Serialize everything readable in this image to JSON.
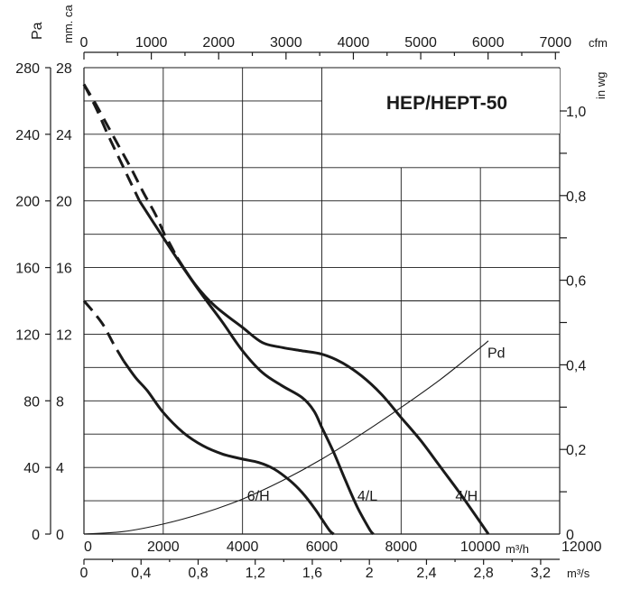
{
  "chart_data": {
    "type": "line",
    "title": "HEP/HEPT-50",
    "units": {
      "pa": "Pa",
      "mmca": "mm. ca",
      "inwg": "in wg",
      "cfm": "cfm",
      "m3h": "m³/h",
      "m3s": "m³/s"
    },
    "axes": {
      "x_m3h": {
        "min": 0,
        "max": 12000,
        "ticks": [
          "0",
          "2000",
          "4000",
          "6000",
          "8000",
          "10000",
          "12000"
        ]
      },
      "x_cfm": {
        "ticks": [
          "0",
          "1000",
          "2000",
          "3000",
          "4000",
          "5000",
          "6000",
          "7000"
        ]
      },
      "x_m3s": {
        "ticks": [
          "0",
          "0,4",
          "0,8",
          "1,2",
          "1,6",
          "2",
          "2,4",
          "2,8",
          "3,2"
        ]
      },
      "y_mmca": {
        "min": 0,
        "max": 28,
        "ticks": [
          "0",
          "4",
          "8",
          "12",
          "16",
          "20",
          "24",
          "28"
        ]
      },
      "y_pa": {
        "ticks": [
          "0",
          "40",
          "80",
          "120",
          "160",
          "200",
          "240",
          "280"
        ]
      },
      "y_inwg": {
        "ticks": [
          "0",
          "0,2",
          "0,4",
          "0,6",
          "0,8",
          "1,0"
        ]
      }
    },
    "grid": true,
    "series": [
      {
        "name": "4/H",
        "dashed_segment": [
          [
            0,
            27
          ],
          [
            100,
            26.6
          ],
          [
            300,
            25.8
          ],
          [
            600,
            24.5
          ],
          [
            900,
            23.2
          ],
          [
            1200,
            21.9
          ],
          [
            1500,
            20.5
          ],
          [
            1800,
            19.2
          ],
          [
            2050,
            17.9
          ],
          [
            2150,
            17.5
          ],
          [
            2350,
            16.6
          ]
        ],
        "solid_segment": [
          [
            2350,
            16.6
          ],
          [
            2800,
            15
          ],
          [
            3300,
            13.7
          ],
          [
            4000,
            12.4
          ],
          [
            4500,
            11.5
          ],
          [
            5000,
            11.2
          ],
          [
            5500,
            11
          ],
          [
            6000,
            10.8
          ],
          [
            6500,
            10.3
          ],
          [
            7000,
            9.5
          ],
          [
            7500,
            8.4
          ],
          [
            8000,
            7.0
          ],
          [
            8500,
            5.6
          ],
          [
            9000,
            4.0
          ],
          [
            9500,
            2.4
          ],
          [
            10000,
            0.7
          ],
          [
            10200,
            0
          ]
        ]
      },
      {
        "name": "4/L",
        "dashed_segment": [
          [
            0,
            27
          ],
          [
            300,
            25.6
          ],
          [
            600,
            24
          ],
          [
            900,
            22.5
          ],
          [
            1200,
            21
          ],
          [
            1400,
            20
          ]
        ],
        "solid_segment": [
          [
            1400,
            20
          ],
          [
            2000,
            17.8
          ],
          [
            2500,
            16
          ],
          [
            3000,
            14.3
          ],
          [
            3500,
            12.7
          ],
          [
            4000,
            11
          ],
          [
            4500,
            9.7
          ],
          [
            5000,
            8.9
          ],
          [
            5500,
            8.2
          ],
          [
            5800,
            7.4
          ],
          [
            6000,
            6.4
          ],
          [
            6300,
            4.9
          ],
          [
            6600,
            3.2
          ],
          [
            6900,
            1.6
          ],
          [
            7200,
            0.3
          ],
          [
            7300,
            0
          ]
        ]
      },
      {
        "name": "6/H",
        "dashed_segment": [
          [
            0,
            14
          ],
          [
            250,
            13.3
          ],
          [
            500,
            12.5
          ],
          [
            750,
            11.4
          ],
          [
            1000,
            10.4
          ]
        ],
        "solid_segment": [
          [
            1000,
            10.4
          ],
          [
            1300,
            9.4
          ],
          [
            1600,
            8.6
          ],
          [
            2000,
            7.3
          ],
          [
            2500,
            6.1
          ],
          [
            3000,
            5.3
          ],
          [
            3500,
            4.8
          ],
          [
            4000,
            4.5
          ],
          [
            4400,
            4.3
          ],
          [
            4800,
            3.9
          ],
          [
            5200,
            3.2
          ],
          [
            5500,
            2.5
          ],
          [
            5800,
            1.6
          ],
          [
            6000,
            0.9
          ],
          [
            6200,
            0.2
          ],
          [
            6300,
            0
          ]
        ]
      },
      {
        "name": "Pd",
        "style": "thin",
        "points": [
          [
            0,
            0
          ],
          [
            1000,
            0.15
          ],
          [
            2000,
            0.6
          ],
          [
            3000,
            1.25
          ],
          [
            4000,
            2.1
          ],
          [
            5000,
            3.2
          ],
          [
            6000,
            4.5
          ],
          [
            7000,
            6.0
          ],
          [
            8000,
            7.6
          ],
          [
            9000,
            9.3
          ],
          [
            10000,
            11.2
          ],
          [
            10200,
            11.6
          ]
        ]
      }
    ],
    "curve_labels": [
      {
        "text": "6/H",
        "x": 4400,
        "y": 2.0
      },
      {
        "text": "4/L",
        "x": 7150,
        "y": 2.0
      },
      {
        "text": "4/H",
        "x": 9650,
        "y": 2.0
      },
      {
        "text": "Pd",
        "x": 10400,
        "y": 10.6
      }
    ]
  }
}
